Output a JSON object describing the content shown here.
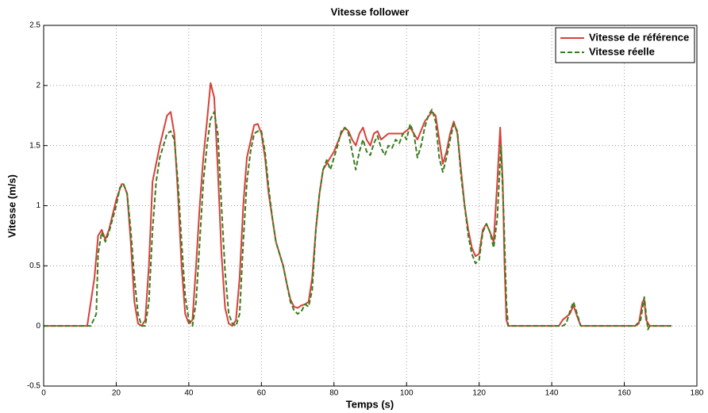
{
  "chart_data": {
    "type": "line",
    "title": "Vitesse follower",
    "xlabel": "Temps (s)",
    "ylabel": "Vitesse (m/s)",
    "xlim": [
      0,
      180
    ],
    "xticks": [
      0,
      20,
      40,
      60,
      80,
      100,
      120,
      140,
      160,
      180
    ],
    "ylim": [
      -0.5,
      2.5
    ],
    "yticks": [
      -0.5,
      0,
      0.5,
      1,
      1.5,
      2,
      2.5
    ],
    "grid": true,
    "legend": "northeast",
    "series": [
      {
        "name": "Vitesse de référence",
        "color": "#d9403a",
        "dashed": false,
        "x": [
          0,
          12,
          14,
          15,
          16,
          17,
          18,
          20,
          21.5,
          22,
          23,
          24,
          25,
          26,
          27,
          28,
          29,
          30,
          32,
          34,
          35,
          36,
          37,
          38,
          39,
          40,
          41,
          42,
          43,
          44,
          45,
          46,
          47,
          48,
          49,
          50,
          51,
          52,
          53,
          54,
          55,
          56,
          58,
          59,
          60,
          61,
          62,
          63,
          64,
          65,
          66,
          67,
          68,
          69,
          70,
          71,
          72,
          73,
          74,
          75,
          76,
          77,
          78,
          80,
          82,
          83,
          84,
          85,
          86,
          87,
          88,
          89,
          90,
          91,
          92,
          93,
          95,
          97,
          99,
          101,
          103,
          105,
          107,
          108,
          109,
          110,
          111,
          112,
          113,
          114,
          115,
          116,
          117,
          118,
          119,
          120,
          121,
          122,
          123,
          124,
          125,
          125.8,
          126.5,
          127,
          127.5,
          128,
          142,
          143,
          145,
          146,
          147,
          148,
          163,
          164,
          165,
          165.5,
          166,
          167,
          173
        ],
        "values": [
          0,
          0,
          0.4,
          0.75,
          0.8,
          0.72,
          0.8,
          1.05,
          1.18,
          1.18,
          1.1,
          0.7,
          0.2,
          0.02,
          0,
          0.05,
          0.5,
          1.2,
          1.5,
          1.75,
          1.78,
          1.6,
          1.1,
          0.5,
          0.1,
          0.02,
          0.05,
          0.5,
          1.0,
          1.4,
          1.7,
          2.02,
          1.9,
          1.3,
          0.6,
          0.15,
          0.02,
          0,
          0.05,
          0.4,
          1.0,
          1.4,
          1.67,
          1.68,
          1.6,
          1.4,
          1.1,
          0.9,
          0.7,
          0.6,
          0.5,
          0.35,
          0.22,
          0.16,
          0.15,
          0.17,
          0.18,
          0.2,
          0.4,
          0.8,
          1.1,
          1.3,
          1.35,
          1.45,
          1.6,
          1.65,
          1.62,
          1.55,
          1.5,
          1.6,
          1.65,
          1.55,
          1.5,
          1.6,
          1.62,
          1.55,
          1.6,
          1.6,
          1.6,
          1.65,
          1.55,
          1.7,
          1.78,
          1.75,
          1.55,
          1.35,
          1.45,
          1.6,
          1.7,
          1.6,
          1.3,
          1.0,
          0.8,
          0.65,
          0.58,
          0.6,
          0.8,
          0.85,
          0.78,
          0.7,
          1.2,
          1.65,
          1.2,
          0.5,
          0.05,
          0,
          0,
          0.05,
          0.1,
          0.17,
          0.08,
          0,
          0,
          0.02,
          0.2,
          0.22,
          0.05,
          0,
          0
        ]
      },
      {
        "name": "Vitesse réelle",
        "color": "#3a7d1c",
        "dashed": true,
        "x": [
          0,
          13,
          14.5,
          15,
          16,
          17,
          18,
          20,
          21,
          22,
          23,
          24,
          25,
          26,
          27,
          28,
          29,
          30,
          31,
          32,
          33,
          34,
          35,
          36,
          37,
          38,
          39,
          40,
          41,
          42,
          43,
          44,
          45,
          46,
          47,
          48,
          49,
          50,
          51,
          52,
          53,
          54,
          55,
          56,
          57,
          58,
          59,
          60,
          61,
          62,
          63,
          64,
          65,
          66,
          67,
          68,
          69,
          70,
          71,
          72,
          73,
          74,
          75,
          76,
          77,
          78,
          79,
          80,
          81,
          82,
          83,
          84,
          85,
          86,
          87,
          88,
          89,
          90,
          91,
          92,
          93,
          94,
          95,
          96,
          97,
          98,
          99,
          100,
          101,
          102,
          103,
          104,
          105,
          106,
          107,
          108,
          109,
          110,
          111,
          112,
          113,
          114,
          115,
          116,
          117,
          118,
          119,
          120,
          121,
          122,
          123,
          124,
          125,
          126,
          126.8,
          127.5,
          128,
          143,
          144,
          145,
          146,
          147,
          148,
          163,
          164.5,
          165.5,
          166,
          166.5,
          167,
          173
        ],
        "values": [
          0,
          0,
          0.1,
          0.6,
          0.78,
          0.7,
          0.78,
          1.0,
          1.15,
          1.18,
          1.1,
          0.8,
          0.4,
          0.1,
          0,
          0,
          0.2,
          0.8,
          1.2,
          1.4,
          1.5,
          1.6,
          1.62,
          1.55,
          1.2,
          0.7,
          0.25,
          0.05,
          0,
          0.2,
          0.7,
          1.2,
          1.5,
          1.72,
          1.78,
          1.6,
          1.0,
          0.45,
          0.1,
          0.02,
          0,
          0.1,
          0.7,
          1.2,
          1.45,
          1.6,
          1.62,
          1.62,
          1.45,
          1.15,
          0.9,
          0.7,
          0.6,
          0.5,
          0.35,
          0.2,
          0.13,
          0.1,
          0.12,
          0.18,
          0.16,
          0.3,
          0.8,
          1.1,
          1.3,
          1.38,
          1.3,
          1.4,
          1.5,
          1.62,
          1.65,
          1.6,
          1.45,
          1.3,
          1.45,
          1.55,
          1.45,
          1.42,
          1.52,
          1.58,
          1.48,
          1.42,
          1.5,
          1.48,
          1.55,
          1.52,
          1.6,
          1.55,
          1.68,
          1.6,
          1.4,
          1.5,
          1.65,
          1.75,
          1.8,
          1.7,
          1.4,
          1.28,
          1.4,
          1.55,
          1.68,
          1.62,
          1.25,
          1.0,
          0.75,
          0.6,
          0.52,
          0.55,
          0.78,
          0.85,
          0.78,
          0.65,
          0.9,
          1.5,
          0.9,
          0.2,
          0,
          0,
          0.02,
          0.12,
          0.2,
          0.1,
          0,
          0,
          0.05,
          0.24,
          0.1,
          -0.03,
          0,
          0
        ]
      }
    ]
  }
}
